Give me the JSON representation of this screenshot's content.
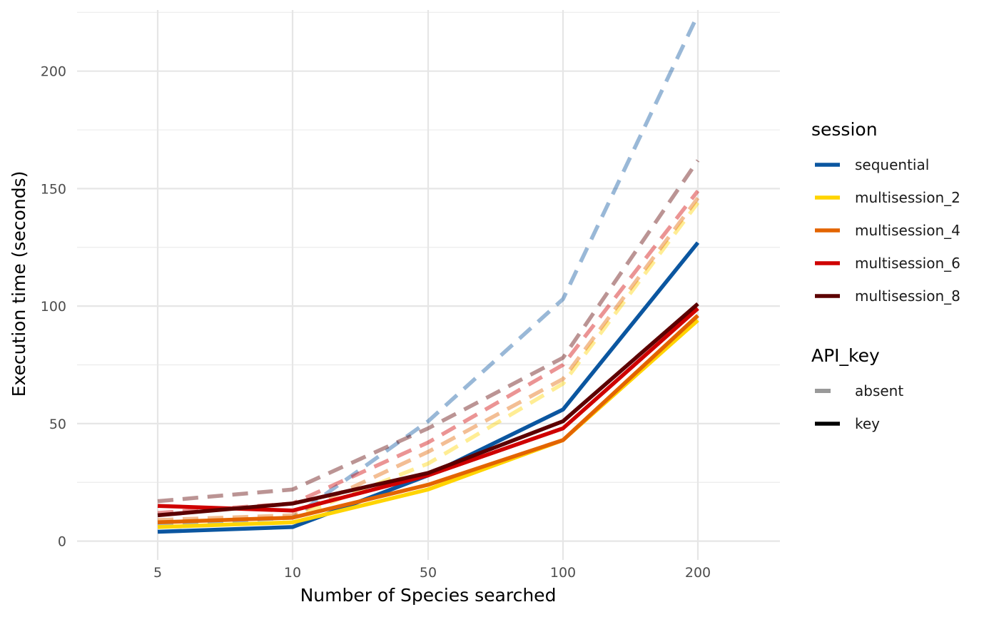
{
  "chart_data": {
    "type": "line",
    "categories": [
      "5",
      "10",
      "50",
      "100",
      "200"
    ],
    "xlabel": "Number of Species searched",
    "ylabel": "Execution time (seconds)",
    "ylim": [
      -8,
      226
    ],
    "yticks": [
      0,
      50,
      100,
      150,
      200
    ],
    "grid": true,
    "legend_position": "right",
    "legends": [
      {
        "title": "session",
        "entries": [
          {
            "label": "sequential",
            "color": "#0B56A0"
          },
          {
            "label": "multisession_2",
            "color": "#FFD400"
          },
          {
            "label": "multisession_4",
            "color": "#E36400"
          },
          {
            "label": "multisession_6",
            "color": "#CF0000"
          },
          {
            "label": "multisession_8",
            "color": "#5C0000"
          }
        ]
      },
      {
        "title": "API_key",
        "entries": [
          {
            "label": "absent",
            "style": "dashed",
            "color": "#999999"
          },
          {
            "label": "key",
            "style": "solid",
            "color": "#000000"
          }
        ]
      }
    ],
    "series": [
      {
        "name": "sequential",
        "api_key": "absent",
        "color": "#0B56A0",
        "values": [
          7,
          10,
          51,
          103,
          224
        ]
      },
      {
        "name": "multisession_2",
        "api_key": "absent",
        "color": "#FFD400",
        "values": [
          8,
          10,
          33,
          67,
          144
        ]
      },
      {
        "name": "multisession_4",
        "api_key": "absent",
        "color": "#E36400",
        "values": [
          9,
          11,
          38,
          69,
          146
        ]
      },
      {
        "name": "multisession_6",
        "api_key": "absent",
        "color": "#CF0000",
        "values": [
          12,
          16,
          42,
          75,
          149
        ]
      },
      {
        "name": "multisession_8",
        "api_key": "absent",
        "color": "#5C0000",
        "values": [
          17,
          22,
          48,
          78,
          162
        ]
      },
      {
        "name": "sequential",
        "api_key": "key",
        "color": "#0B56A0",
        "values": [
          4,
          6,
          28,
          56,
          127
        ]
      },
      {
        "name": "multisession_2",
        "api_key": "key",
        "color": "#FFD400",
        "values": [
          6,
          8,
          22,
          43,
          94
        ]
      },
      {
        "name": "multisession_4",
        "api_key": "key",
        "color": "#E36400",
        "values": [
          8,
          10,
          24,
          43,
          96
        ]
      },
      {
        "name": "multisession_6",
        "api_key": "key",
        "color": "#CF0000",
        "values": [
          15,
          13,
          28,
          48,
          99
        ]
      },
      {
        "name": "multisession_8",
        "api_key": "key",
        "color": "#5C0000",
        "values": [
          11,
          16,
          29,
          51,
          101
        ]
      }
    ]
  }
}
